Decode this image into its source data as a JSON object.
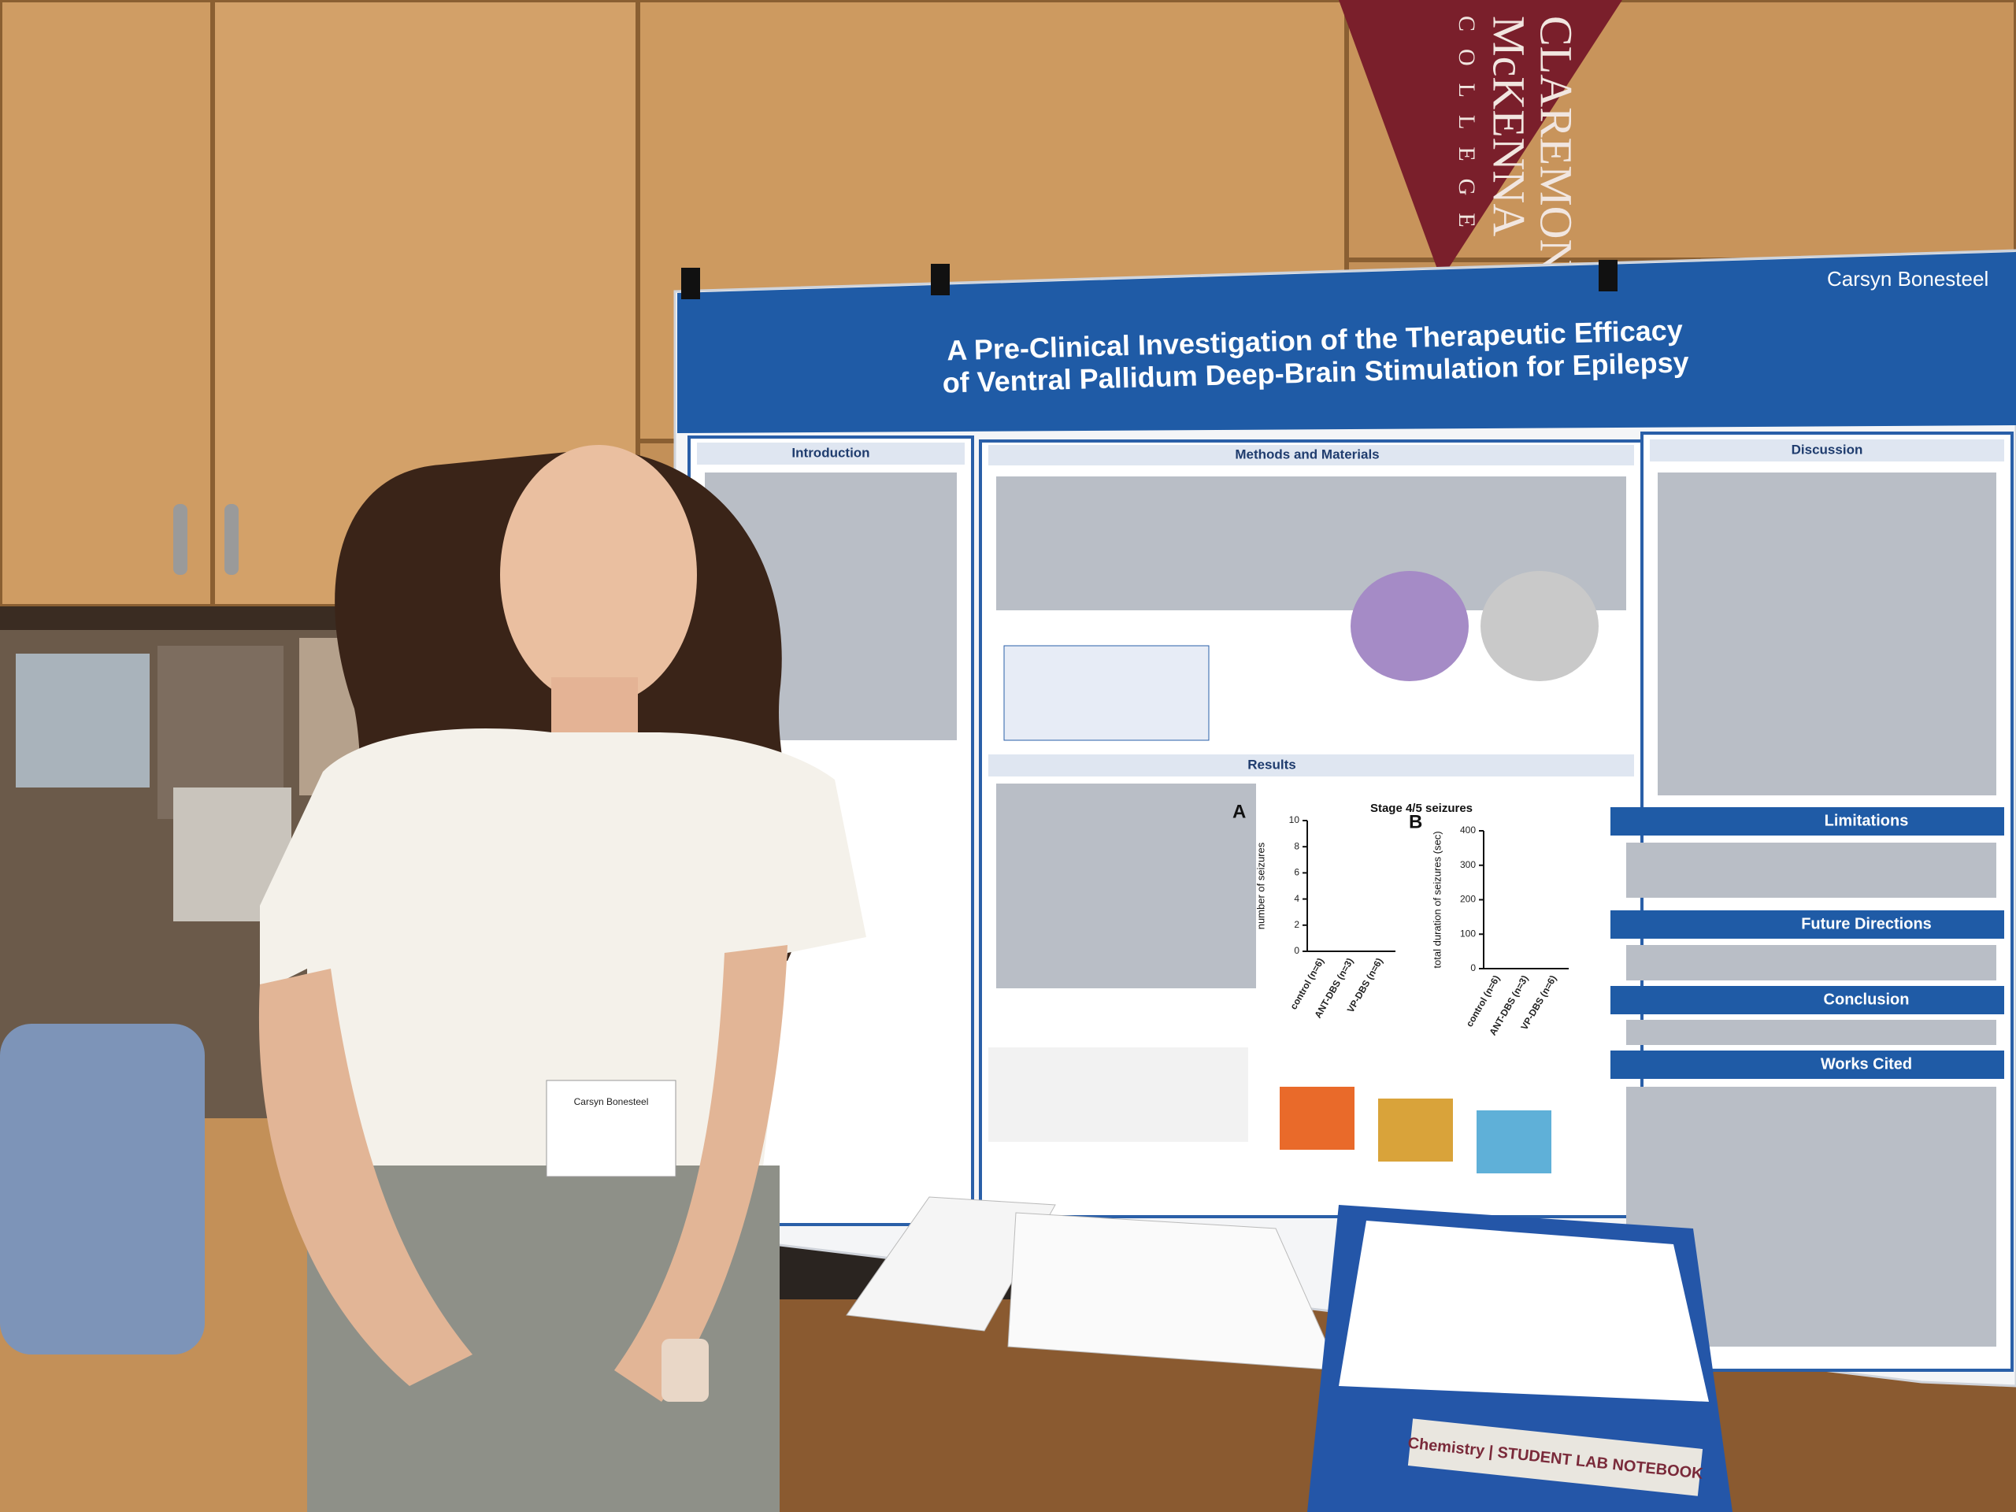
{
  "pennant": {
    "line1": "CLAREMON",
    "line2": "McKENNA",
    "line3": "COLLEGE"
  },
  "poster": {
    "author": "Carsyn Bonesteel",
    "title_line1": "A Pre-Clinical Investigation of the Therapeutic Efficacy",
    "title_line2": "of Ventral Pallidum Deep-Brain Stimulation for Epilepsy",
    "sections": {
      "introduction": "Introduction",
      "methods": "Methods and Materials",
      "results": "Results",
      "discussion": "Discussion",
      "limitations": "Limitations",
      "future": "Future Directions",
      "conclusion": "Conclusion",
      "works_cited": "Works Cited"
    }
  },
  "chart_data": {
    "type": "scatter",
    "title": "Stage 4/5 seizures",
    "panels": [
      {
        "label": "A",
        "ylabel": "number of seizures",
        "ylim": [
          0,
          10
        ],
        "yticks": [
          0,
          2,
          4,
          6,
          8,
          10
        ]
      },
      {
        "label": "B",
        "ylabel": "total duration of seizures (sec)",
        "ylim": [
          0,
          400
        ],
        "yticks": [
          0,
          100,
          200,
          300,
          400
        ]
      }
    ],
    "categories": [
      "control (n=6)",
      "ANT-DBS (n=3)",
      "VP-DBS (n=6)"
    ]
  },
  "badge": {
    "name": "Carsyn Bonesteel"
  },
  "notebook": {
    "label": "Chemistry | STUDENT LAB NOTEBOOK"
  }
}
